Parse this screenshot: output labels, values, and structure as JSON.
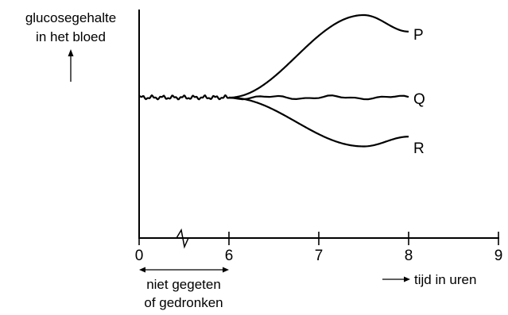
{
  "chart_data": {
    "type": "line",
    "title": "",
    "ylabel": [
      "glucosegehalte",
      "in het bloed"
    ],
    "xlabel": "tijd in uren",
    "x_ticks": [
      "0",
      "6",
      "7",
      "8",
      "9"
    ],
    "x_axis_break": "between 0 and 6",
    "annotation": [
      "niet gegeten",
      "of gedronken"
    ],
    "annotation_range": [
      0,
      6
    ],
    "y_units": "none (relative)",
    "series": [
      {
        "name": "P",
        "points": [
          [
            6,
            0
          ],
          [
            6.5,
            0.45
          ],
          [
            7,
            0.85
          ],
          [
            7.5,
            1.0
          ],
          [
            8,
            0.8
          ]
        ]
      },
      {
        "name": "Q",
        "points": [
          [
            0,
            0
          ],
          [
            6,
            0
          ],
          [
            7,
            0
          ],
          [
            8,
            0
          ]
        ]
      },
      {
        "name": "R",
        "points": [
          [
            6,
            0
          ],
          [
            6.5,
            -0.35
          ],
          [
            7,
            -0.65
          ],
          [
            7.5,
            -0.75
          ],
          [
            8,
            -0.6
          ]
        ]
      }
    ],
    "colors": {
      "line": "#000000",
      "background": "#ffffff"
    }
  }
}
